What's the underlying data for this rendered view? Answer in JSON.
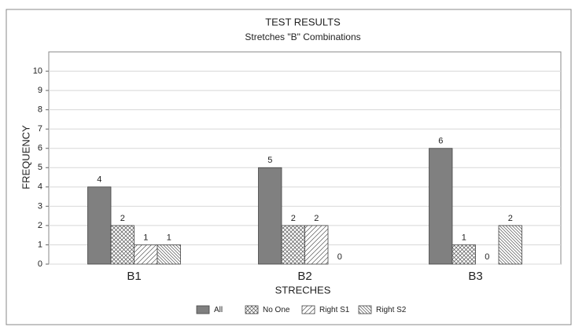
{
  "chart_data": {
    "type": "bar",
    "title": "TEST RESULTS",
    "subtitle": "Stretches \"B\" Combinations",
    "x_label": "STRECHES",
    "y_label": "FREQUENCY",
    "categories": [
      "B1",
      "B2",
      "B3"
    ],
    "series": [
      {
        "name": "All",
        "color": "#808080",
        "pattern": "solid",
        "values": [
          4,
          5,
          6
        ]
      },
      {
        "name": "No One",
        "color": "#555555",
        "pattern": "crosshatch",
        "values": [
          2,
          2,
          1
        ]
      },
      {
        "name": "Right S1",
        "color": "#555555",
        "pattern": "forward-diagonal",
        "values": [
          1,
          2,
          0
        ]
      },
      {
        "name": "Right S2",
        "color": "#555555",
        "pattern": "backward-diagonal",
        "values": [
          1,
          0,
          2
        ]
      }
    ],
    "ylim": [
      0,
      11
    ],
    "yticks": [
      0,
      1,
      2,
      3,
      4,
      5,
      6,
      7,
      8,
      9,
      10
    ],
    "grid": true,
    "legend": "bottom"
  }
}
